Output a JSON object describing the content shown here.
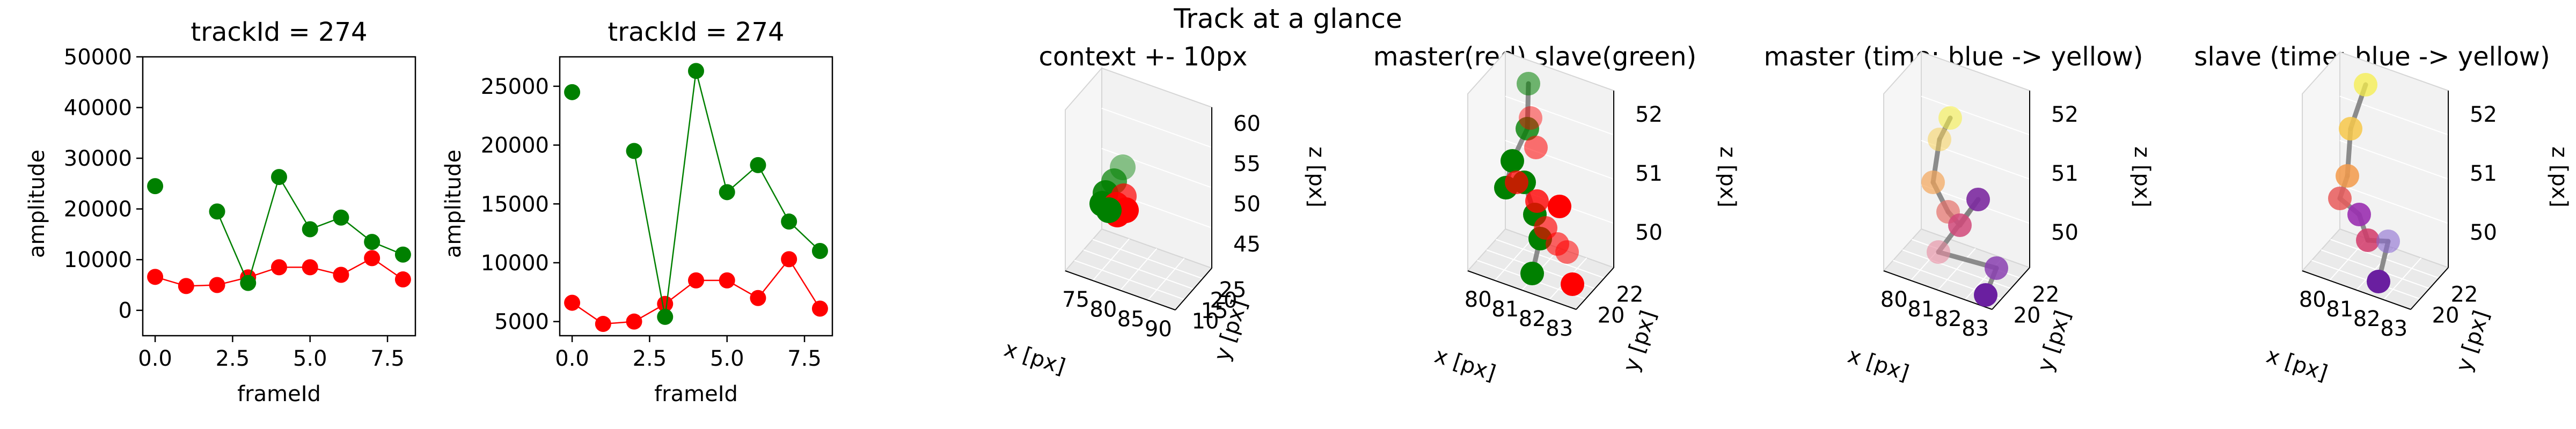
{
  "suptitle": "Track at a glance",
  "colors": {
    "master": "#ff0000",
    "slave": "#008000",
    "line": "#808080"
  },
  "chart_data": [
    {
      "type": "line",
      "title": "trackId = 274",
      "xlabel": "frameId",
      "ylabel": "amplitude",
      "xlim": [
        -0.4,
        8.4
      ],
      "ylim": [
        -5000,
        50000
      ],
      "xticks": [
        0.0,
        2.5,
        5.0,
        7.5
      ],
      "xtick_labels": [
        "0.0",
        "2.5",
        "5.0",
        "7.5"
      ],
      "yticks": [
        0,
        10000,
        20000,
        30000,
        40000,
        50000
      ],
      "ytick_labels": [
        "0",
        "10000",
        "20000",
        "30000",
        "40000",
        "50000"
      ],
      "x": [
        0,
        1,
        2,
        3,
        4,
        5,
        6,
        7,
        8
      ],
      "series": [
        {
          "color": "#ff0000",
          "values": [
            6600,
            4800,
            5000,
            6500,
            8500,
            8500,
            7000,
            10300,
            6100
          ]
        },
        {
          "color": "#008000",
          "values": [
            24500,
            null,
            19500,
            5400,
            26300,
            16000,
            18300,
            13500,
            11000
          ]
        }
      ],
      "segments": {
        "#008000": [
          [
            2,
            3
          ],
          [
            3,
            4
          ],
          [
            4,
            5
          ],
          [
            5,
            6
          ],
          [
            6,
            7
          ],
          [
            7,
            8
          ]
        ]
      }
    },
    {
      "type": "line",
      "title": "trackId = 274",
      "xlabel": "frameId",
      "ylabel": "amplitude",
      "xlim": [
        -0.4,
        8.4
      ],
      "ylim": [
        3800,
        27500
      ],
      "xticks": [
        0.0,
        2.5,
        5.0,
        7.5
      ],
      "xtick_labels": [
        "0.0",
        "2.5",
        "5.0",
        "7.5"
      ],
      "yticks": [
        5000,
        10000,
        15000,
        20000,
        25000
      ],
      "ytick_labels": [
        "5000",
        "10000",
        "15000",
        "20000",
        "25000"
      ],
      "x": [
        0,
        1,
        2,
        3,
        4,
        5,
        6,
        7,
        8
      ],
      "series": [
        {
          "color": "#ff0000",
          "values": [
            6600,
            4800,
            5000,
            6500,
            8500,
            8500,
            7000,
            10300,
            6100
          ]
        },
        {
          "color": "#008000",
          "values": [
            24500,
            null,
            19500,
            5400,
            26300,
            16000,
            18300,
            13500,
            11000
          ]
        }
      ],
      "segments": {
        "#008000": [
          [
            2,
            3
          ],
          [
            3,
            4
          ],
          [
            4,
            5
          ],
          [
            5,
            6
          ],
          [
            6,
            7
          ],
          [
            7,
            8
          ]
        ]
      }
    },
    {
      "type": "scatter",
      "title": "context +- 10px",
      "xlabel": "x [px]",
      "ylabel": "y [px]",
      "zlabel": "z [px]",
      "xticks": [
        "75",
        "80",
        "85",
        "90"
      ],
      "yticks": [
        "10",
        "15",
        "20",
        "25"
      ],
      "zticks": [
        "45",
        "50",
        "55",
        "60"
      ]
    },
    {
      "type": "scatter",
      "title": "master(red) slave(green)",
      "xlabel": "x [px]",
      "ylabel": "y [px]",
      "zlabel": "z [px]",
      "xticks": [
        "80",
        "81",
        "82",
        "83"
      ],
      "yticks": [
        "20",
        "22"
      ],
      "zticks": [
        "50",
        "51",
        "52"
      ]
    },
    {
      "type": "scatter",
      "title": "master (time: blue -> yellow)",
      "xlabel": "x [px]",
      "ylabel": "y [px]",
      "zlabel": "z [px]",
      "xticks": [
        "80",
        "81",
        "82",
        "83"
      ],
      "yticks": [
        "20",
        "22"
      ],
      "zticks": [
        "50",
        "51",
        "52"
      ]
    },
    {
      "type": "scatter",
      "title": "slave (time: blue -> yellow)",
      "xlabel": "x [px]",
      "ylabel": "y [px]",
      "zlabel": "z [px]",
      "xticks": [
        "80",
        "81",
        "82",
        "83"
      ],
      "yticks": [
        "20",
        "22"
      ],
      "zticks": [
        "50",
        "51",
        "52"
      ]
    }
  ]
}
